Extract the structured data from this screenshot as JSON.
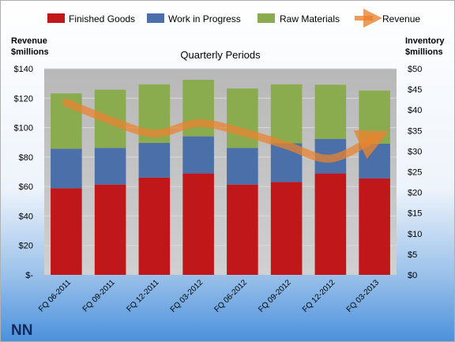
{
  "company": "NN",
  "colors": {
    "finished_goods": "#c0171b",
    "work_in_progress": "#4b6fa8",
    "raw_materials": "#8bab4f",
    "revenue": "#e8832f"
  },
  "chart_data": {
    "type": "bar",
    "stacked": true,
    "title": "Quarterly Periods",
    "ylabel_left": "Revenue\n$millions",
    "ylabel_right": "Inventory\n$millions",
    "categories": [
      "FQ 06-2011",
      "FQ 09-2011",
      "FQ 12-2011",
      "FQ 03-2012",
      "FQ 06-2012",
      "FQ 09-2012",
      "FQ 12-2012",
      "FQ 03-2013"
    ],
    "left_axis": {
      "min": 0,
      "max": 140,
      "step": 20,
      "tick_labels": [
        "$-",
        "$20",
        "$40",
        "$60",
        "$80",
        "$100",
        "$120",
        "$140"
      ]
    },
    "right_axis": {
      "min": 0,
      "max": 50,
      "step": 5,
      "tick_labels": [
        "$0",
        "$5",
        "$10",
        "$15",
        "$20",
        "$25",
        "$30",
        "$35",
        "$40",
        "$45",
        "$50"
      ]
    },
    "series": [
      {
        "name": "Finished Goods",
        "axis": "right",
        "kind": "bar",
        "values": [
          21.0,
          21.9,
          23.6,
          24.6,
          21.9,
          22.5,
          24.6,
          23.4
        ]
      },
      {
        "name": "Work in Progress",
        "axis": "right",
        "kind": "bar",
        "values": [
          9.6,
          8.9,
          8.4,
          9.0,
          8.9,
          9.4,
          8.4,
          8.4
        ]
      },
      {
        "name": "Raw Materials",
        "axis": "right",
        "kind": "bar",
        "values": [
          13.4,
          14.1,
          14.2,
          13.7,
          14.4,
          14.3,
          13.1,
          12.9
        ]
      },
      {
        "name": "Revenue",
        "axis": "left",
        "kind": "line",
        "values": [
          117,
          105,
          96,
          103,
          97,
          88,
          79,
          93
        ]
      }
    ],
    "legend_position": "top",
    "grid": true
  }
}
